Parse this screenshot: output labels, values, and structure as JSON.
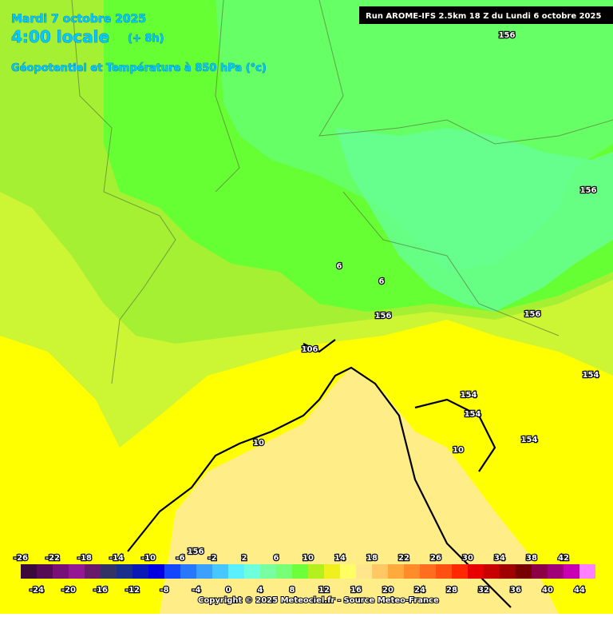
{
  "header": {
    "date": "Mardi 7 octobre 2025",
    "time": "4:00 locale",
    "offset": "(+ 8h)",
    "field": "Géopotentiel et Température à 850 hPa (°c)"
  },
  "run_info": "Run AROME-IFS 2.5km 18 Z du Lundi 6 octobre 2025",
  "contour_labels": [
    "156",
    "156",
    "6",
    "6",
    "156",
    "106",
    "156",
    "154",
    "154",
    "154",
    "154",
    "10",
    "10",
    "156"
  ],
  "color_scale": {
    "values": [
      -26,
      -24,
      -22,
      -20,
      -18,
      -16,
      -14,
      -12,
      -10,
      -8,
      -6,
      -4,
      -2,
      0,
      2,
      4,
      6,
      8,
      10,
      12,
      14,
      16,
      18,
      20,
      22,
      24,
      26,
      28,
      30,
      32,
      34,
      36,
      38,
      40,
      42,
      44
    ],
    "colors": [
      "#3a0a3a",
      "#550c55",
      "#771077",
      "#941894",
      "#6a1a6a",
      "#333366",
      "#1a2f8c",
      "#0a1ab4",
      "#0000e0",
      "#1446ff",
      "#2878ff",
      "#3ca0ff",
      "#46c8ff",
      "#5af0ff",
      "#6effdc",
      "#78ffa0",
      "#78ff78",
      "#6eff3c",
      "#b4f01e",
      "#f0f01e",
      "#ffff64",
      "#ffe68c",
      "#ffc864",
      "#ffaa3c",
      "#ff8c28",
      "#ff6e1e",
      "#ff5014",
      "#ff2800",
      "#e60000",
      "#c80000",
      "#a00000",
      "#780000",
      "#8c0046",
      "#a00078",
      "#c800b4",
      "#ff80ff"
    ]
  },
  "copyright": "Copyright © 2025 Meteociel.fr - Source Meteo-France"
}
